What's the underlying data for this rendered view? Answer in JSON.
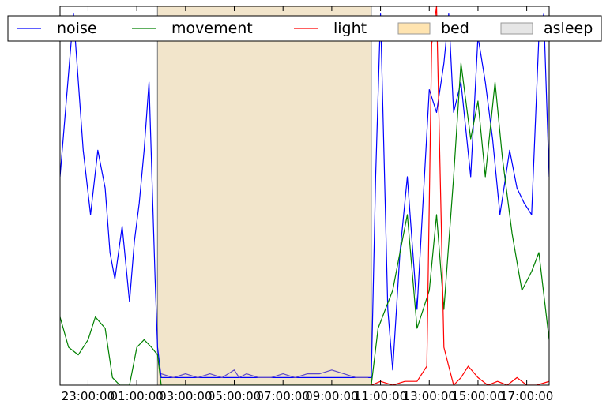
{
  "chart_data": {
    "type": "line",
    "title": "",
    "xlabel": "",
    "ylabel": "",
    "y_tick_labels_shown": false,
    "grid": false,
    "legend_placement": "top",
    "x_tick_labels": [
      "23:00:00",
      "01:00:00",
      "03:00:00",
      "05:00:00",
      "07:00:00",
      "09:00:00",
      "11:00:00",
      "13:00:00",
      "15:00:00",
      "17:00:00"
    ],
    "x_range_hours": [
      -2.15,
      17.92
    ],
    "y_range": [
      0,
      1
    ],
    "shaded_regions": [
      {
        "name": "bed",
        "start_hour": 1.85,
        "end_hour": 10.62
      },
      {
        "name": "asleep",
        "start_hour": 1.85,
        "end_hour": 10.62
      }
    ],
    "legend": [
      {
        "name": "noise",
        "kind": "line",
        "color": "#0000ff"
      },
      {
        "name": "movement",
        "kind": "line",
        "color": "#008000"
      },
      {
        "name": "light",
        "kind": "line",
        "color": "#ff0000"
      },
      {
        "name": "bed",
        "kind": "patch",
        "color": "#ffe4b0"
      },
      {
        "name": "asleep",
        "kind": "patch",
        "color": "#e6e6e6"
      }
    ],
    "series": [
      {
        "name": "noise",
        "color": "#0000ff",
        "x_hours": [
          -2.15,
          -1.6,
          -1.2,
          -0.9,
          -0.6,
          -0.3,
          -0.1,
          0.1,
          0.4,
          0.7,
          0.9,
          1.1,
          1.3,
          1.5,
          1.75,
          1.85,
          2.0,
          10.62,
          10.8,
          11.0,
          11.3,
          11.5,
          11.8,
          12.1,
          12.5,
          13.0,
          13.3,
          13.6,
          13.8,
          14.0,
          14.3,
          14.7,
          15.0,
          15.3,
          15.6,
          15.9,
          16.3,
          16.6,
          16.9,
          17.2,
          17.5,
          17.7,
          17.92
        ],
        "values": [
          0.55,
          0.98,
          0.62,
          0.45,
          0.62,
          0.52,
          0.35,
          0.28,
          0.42,
          0.22,
          0.38,
          0.48,
          0.62,
          0.8,
          0.28,
          0.1,
          0.02,
          0.02,
          0.55,
          0.98,
          0.2,
          0.04,
          0.35,
          0.55,
          0.2,
          0.78,
          0.72,
          0.85,
          0.98,
          0.72,
          0.8,
          0.55,
          0.92,
          0.8,
          0.65,
          0.45,
          0.62,
          0.52,
          0.48,
          0.45,
          0.92,
          0.98,
          0.55
        ]
      },
      {
        "name": "movement",
        "color": "#008000",
        "x_hours": [
          -2.15,
          -1.8,
          -1.4,
          -1.0,
          -0.7,
          -0.3,
          0.0,
          0.3,
          0.7,
          1.0,
          1.3,
          1.6,
          1.85,
          2.0,
          10.62,
          10.9,
          11.2,
          11.5,
          11.8,
          12.1,
          12.5,
          13.0,
          13.3,
          13.6,
          14.0,
          14.3,
          14.7,
          15.0,
          15.3,
          15.7,
          16.0,
          16.4,
          16.8,
          17.2,
          17.5,
          17.92
        ],
        "values": [
          0.18,
          0.1,
          0.08,
          0.12,
          0.18,
          0.15,
          0.02,
          0.0,
          0.0,
          0.1,
          0.12,
          0.1,
          0.08,
          0.0,
          0.0,
          0.15,
          0.2,
          0.25,
          0.35,
          0.45,
          0.15,
          0.25,
          0.45,
          0.2,
          0.55,
          0.85,
          0.65,
          0.75,
          0.55,
          0.8,
          0.6,
          0.4,
          0.25,
          0.3,
          0.35,
          0.12
        ]
      },
      {
        "name": "light",
        "color": "#ff0000",
        "x_hours": [
          10.62,
          11.0,
          11.5,
          12.0,
          12.5,
          12.9,
          13.1,
          13.3,
          13.6,
          13.8,
          14.0,
          14.3,
          14.6,
          15.0,
          15.4,
          15.8,
          16.2,
          16.6,
          17.0,
          17.4,
          17.92
        ],
        "values": [
          0.0,
          0.01,
          0.0,
          0.01,
          0.01,
          0.05,
          0.9,
          1.0,
          0.1,
          0.05,
          0.0,
          0.02,
          0.05,
          0.02,
          0.0,
          0.01,
          0.0,
          0.02,
          0.0,
          0.0,
          0.01
        ]
      },
      {
        "name": "asleep-trace",
        "color": "#5c48c8",
        "x_hours": [
          2.0,
          2.5,
          3.0,
          3.5,
          4.0,
          4.5,
          5.0,
          5.2,
          5.5,
          6.0,
          6.5,
          7.0,
          7.5,
          8.0,
          8.5,
          9.0,
          9.5,
          10.0,
          10.5
        ],
        "values": [
          0.03,
          0.02,
          0.03,
          0.02,
          0.03,
          0.02,
          0.04,
          0.02,
          0.03,
          0.02,
          0.02,
          0.03,
          0.02,
          0.03,
          0.03,
          0.04,
          0.03,
          0.02,
          0.02
        ]
      }
    ]
  }
}
